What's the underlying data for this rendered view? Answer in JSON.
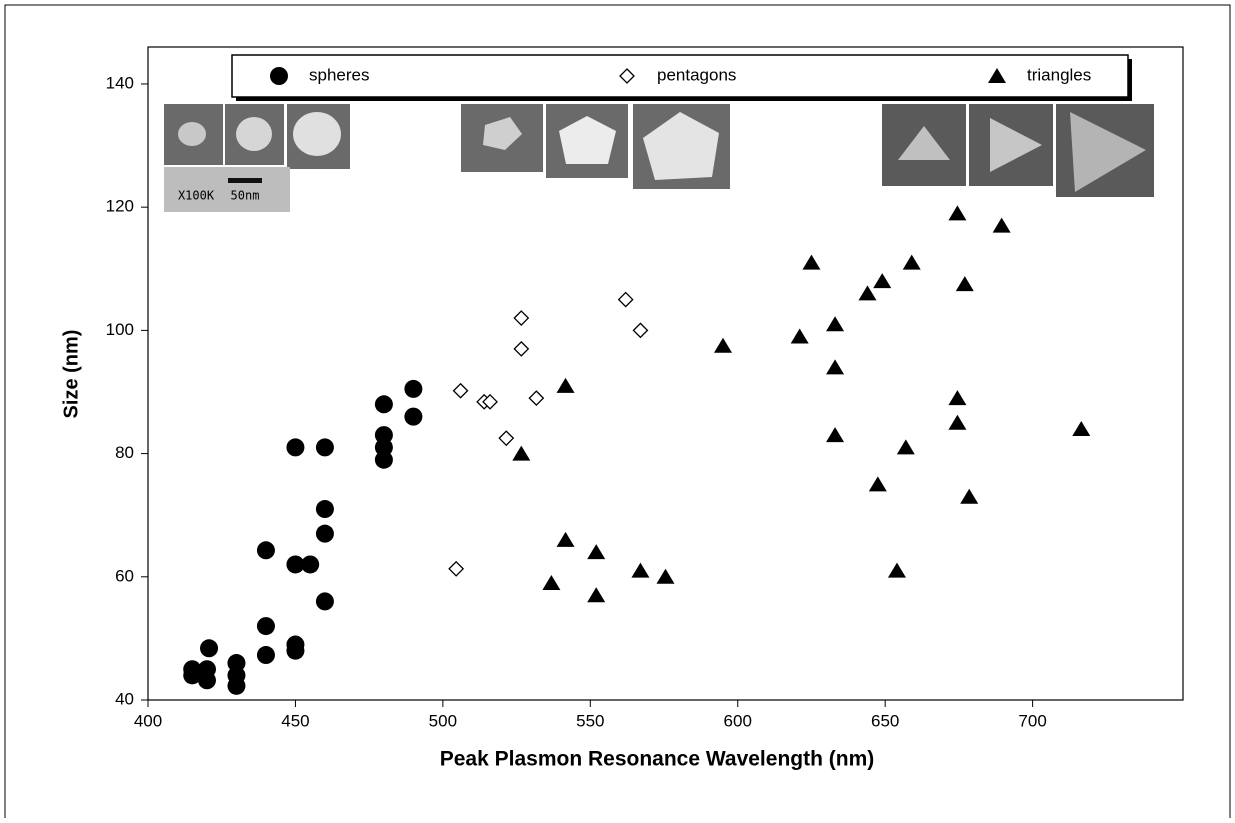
{
  "chart_data": {
    "type": "scatter",
    "x_label": "Peak Plasmon Resonance Wavelength (nm)",
    "y_label": "Size (nm)",
    "xlim": [
      400,
      751
    ],
    "ylim": [
      40,
      146
    ],
    "xticks": [
      400,
      450,
      500,
      550,
      600,
      650,
      700
    ],
    "yticks": [
      40,
      60,
      80,
      100,
      120,
      140
    ],
    "annotations": [
      "X100K",
      "50nm"
    ],
    "series": [
      {
        "name": "spheres",
        "color": "#000000",
        "marker": "circle",
        "x": [
          415,
          415,
          420.7,
          420,
          420,
          430,
          430,
          430,
          440,
          440,
          440,
          450,
          450,
          450,
          450,
          455,
          460,
          460,
          460,
          460,
          480,
          480,
          480,
          480,
          490,
          490
        ],
        "values": [
          45,
          44,
          48.4,
          45,
          43.2,
          46,
          44,
          42.3,
          64.3,
          52,
          47.3,
          81,
          62,
          49,
          48,
          62,
          81,
          71,
          67,
          56,
          88,
          83,
          81,
          79,
          90.5,
          86
        ]
      },
      {
        "name": "pentagons",
        "color": "#000000",
        "marker": "open-diamond",
        "x": [
          506,
          514,
          516,
          521.5,
          526.6,
          526.6,
          531.7,
          562,
          567,
          504.5
        ],
        "values": [
          90.2,
          88.4,
          88.4,
          82.5,
          102,
          97,
          89,
          105,
          100,
          61.3
        ]
      },
      {
        "name": "triangles",
        "color": "#000000",
        "marker": "triangle",
        "x": [
          526.6,
          541.6,
          541.6,
          536.8,
          552,
          552,
          567,
          575.5,
          595,
          621,
          625,
          633,
          633,
          633,
          644,
          649,
          647.5,
          654,
          657,
          659,
          674.5,
          677,
          674.5,
          674.5,
          689.5,
          678.5,
          716.5
        ],
        "values": [
          80,
          91,
          66,
          59,
          64,
          57,
          61,
          60,
          97.5,
          99,
          111,
          101,
          94,
          83,
          106,
          108,
          75,
          61,
          81,
          111,
          119,
          107.5,
          89,
          85,
          117,
          73,
          84
        ]
      }
    ]
  }
}
